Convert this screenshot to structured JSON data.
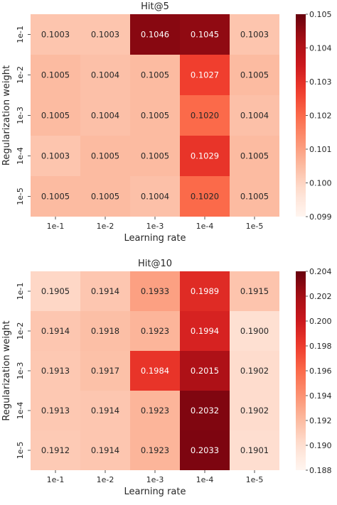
{
  "chart_data": [
    {
      "type": "heatmap",
      "title": "Hit@5",
      "xlabel": "Learning rate",
      "ylabel": "Regularization weight",
      "x_categories": [
        "1e-1",
        "1e-2",
        "1e-3",
        "1e-4",
        "1e-5"
      ],
      "y_categories": [
        "1e-1",
        "1e-2",
        "1e-3",
        "1e-4",
        "1e-5"
      ],
      "values": [
        [
          0.1003,
          0.1003,
          0.1046,
          0.1045,
          0.1003
        ],
        [
          0.1005,
          0.1004,
          0.1005,
          0.1027,
          0.1005
        ],
        [
          0.1005,
          0.1004,
          0.1005,
          0.102,
          0.1004
        ],
        [
          0.1003,
          0.1005,
          0.1005,
          0.1029,
          0.1005
        ],
        [
          0.1005,
          0.1005,
          0.1004,
          0.102,
          0.1005
        ]
      ],
      "cell_labels": [
        [
          "0.1003",
          "0.1003",
          "0.1046",
          "0.1045",
          "0.1003"
        ],
        [
          "0.1005",
          "0.1004",
          "0.1005",
          "0.1027",
          "0.1005"
        ],
        [
          "0.1005",
          "0.1004",
          "0.1005",
          "0.1020",
          "0.1004"
        ],
        [
          "0.1003",
          "0.1005",
          "0.1005",
          "0.1029",
          "0.1005"
        ],
        [
          "0.1005",
          "0.1005",
          "0.1004",
          "0.1020",
          "0.1005"
        ]
      ],
      "colorbar": {
        "range": [
          0.099,
          0.105
        ],
        "ticks": [
          0.099,
          0.1,
          0.101,
          0.102,
          0.103,
          0.104,
          0.105
        ],
        "tick_labels": [
          "0.099",
          "0.100",
          "0.101",
          "0.102",
          "0.103",
          "0.104",
          "0.105"
        ]
      },
      "colormap": "Reds"
    },
    {
      "type": "heatmap",
      "title": "Hit@10",
      "xlabel": "Learning rate",
      "ylabel": "Regularization weight",
      "x_categories": [
        "1e-1",
        "1e-2",
        "1e-3",
        "1e-4",
        "1e-5"
      ],
      "y_categories": [
        "1e-1",
        "1e-2",
        "1e-3",
        "1e-4",
        "1e-5"
      ],
      "values": [
        [
          0.1905,
          0.1914,
          0.1933,
          0.1989,
          0.1915
        ],
        [
          0.1914,
          0.1918,
          0.1923,
          0.1994,
          0.19
        ],
        [
          0.1913,
          0.1917,
          0.1984,
          0.2015,
          0.1902
        ],
        [
          0.1913,
          0.1914,
          0.1923,
          0.2032,
          0.1902
        ],
        [
          0.1912,
          0.1914,
          0.1923,
          0.2033,
          0.1901
        ]
      ],
      "cell_labels": [
        [
          "0.1905",
          "0.1914",
          "0.1933",
          "0.1989",
          "0.1915"
        ],
        [
          "0.1914",
          "0.1918",
          "0.1923",
          "0.1994",
          "0.1900"
        ],
        [
          "0.1913",
          "0.1917",
          "0.1984",
          "0.2015",
          "0.1902"
        ],
        [
          "0.1913",
          "0.1914",
          "0.1923",
          "0.2032",
          "0.1902"
        ],
        [
          "0.1912",
          "0.1914",
          "0.1923",
          "0.2033",
          "0.1901"
        ]
      ],
      "colorbar": {
        "range": [
          0.188,
          0.204
        ],
        "ticks": [
          0.188,
          0.19,
          0.192,
          0.194,
          0.196,
          0.198,
          0.2,
          0.202,
          0.204
        ],
        "tick_labels": [
          "0.188",
          "0.190",
          "0.192",
          "0.194",
          "0.196",
          "0.198",
          "0.200",
          "0.202",
          "0.204"
        ]
      },
      "colormap": "Reds"
    }
  ]
}
